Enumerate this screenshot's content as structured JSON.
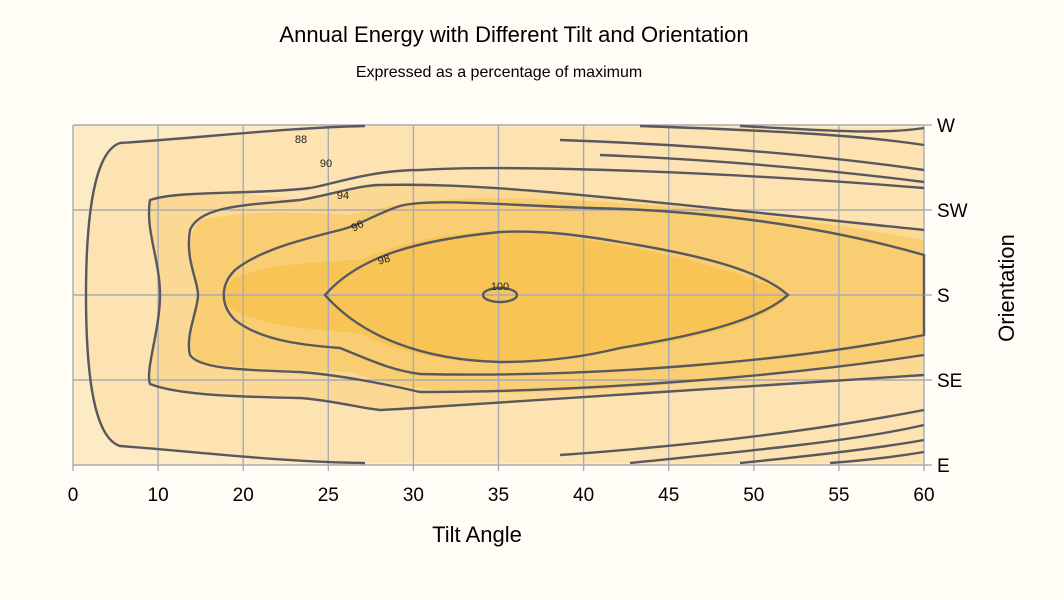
{
  "chart_data": {
    "type": "contour",
    "title": "Annual Energy with Different Tilt and Orientation",
    "subtitle": "Expressed as a percentage of maximum",
    "xlabel": "Tilt Angle",
    "ylabel": "Orientation",
    "x_ticks": [
      "0",
      "10",
      "20",
      "25",
      "30",
      "35",
      "40",
      "45",
      "50",
      "55",
      "60"
    ],
    "y_ticks": [
      "W",
      "SW",
      "S",
      "SE",
      "E"
    ],
    "grid": true,
    "maximum": {
      "tilt": 35,
      "orientation": "S",
      "value": 100
    },
    "contour_levels": [
      "88",
      "90",
      "94",
      "96",
      "98",
      "100"
    ],
    "colors": {
      "outer": "#fdebc6",
      "band1": "#fde3b2",
      "band2": "#fbd893",
      "band3": "#f9cd72",
      "band4": "#f8c455",
      "line": "#58585e",
      "grid": "#a9aab4"
    }
  }
}
